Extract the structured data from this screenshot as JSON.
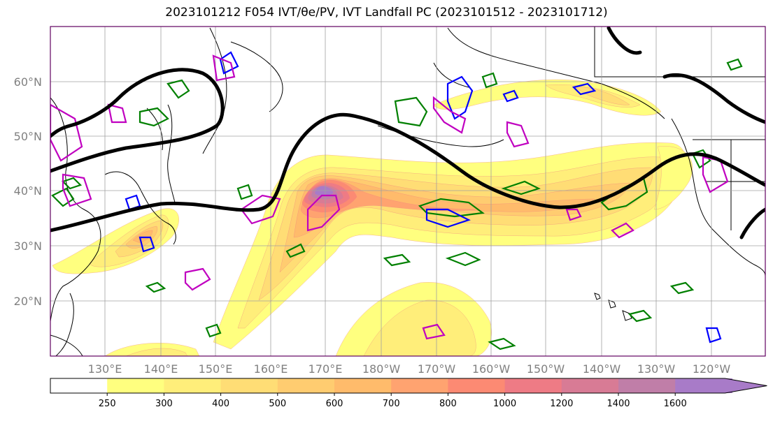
{
  "title": "2023101212 F054 IVT/θe/PV, IVT Landfall PC (2023101512 - 2023101712)",
  "lat_labels": [
    "60°N",
    "50°N",
    "40°N",
    "30°N",
    "20°N"
  ],
  "lon_labels": [
    "130°E",
    "140°E",
    "150°E",
    "160°E",
    "170°E",
    "180°W",
    "170°W",
    "160°W",
    "150°W",
    "140°W",
    "130°W",
    "120°W"
  ],
  "colorbar": {
    "ticks": [
      "250",
      "300",
      "400",
      "500",
      "600",
      "700",
      "800",
      "1000",
      "1200",
      "1400",
      "1600"
    ],
    "colors": [
      "#ffffff",
      "#ffff7f",
      "#ffee7a",
      "#ffdd75",
      "#ffcc70",
      "#ffbb6b",
      "#ffa370",
      "#fc8a73",
      "#ee7b85",
      "#d87b95",
      "#c07ea8",
      "#a87bc8"
    ],
    "extend": "max"
  },
  "colors": {
    "ivt_contour_line": "#f08080",
    "jet": "#000000",
    "pv_green": "#008000",
    "blue": "#0000ff",
    "magenta": "#c000c0",
    "coast": "#000000",
    "grid": "#a0a0a0"
  }
}
